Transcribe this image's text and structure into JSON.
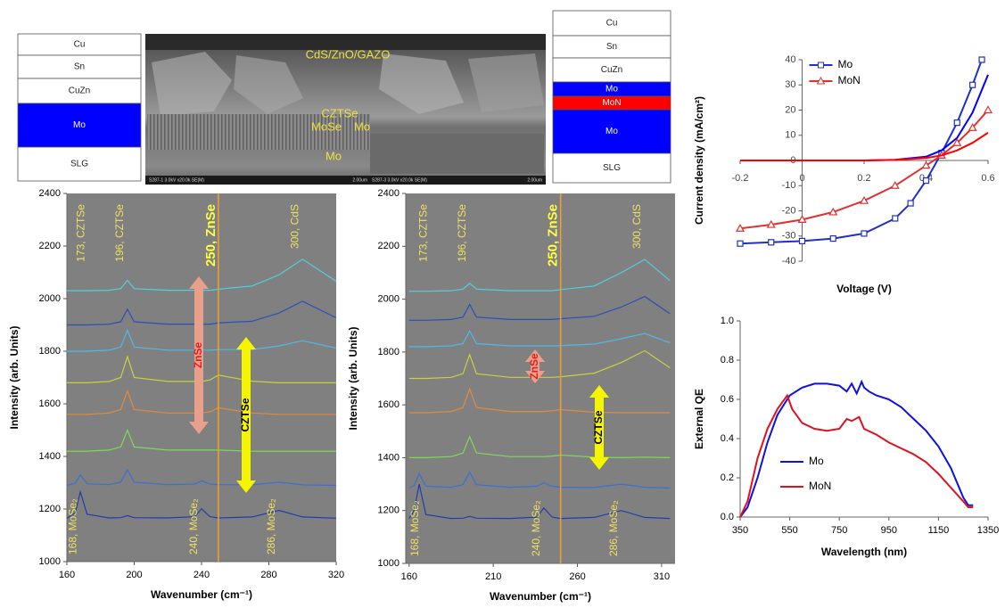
{
  "layer_stacks": [
    {
      "layers": [
        {
          "label": "Cu",
          "color": "#ffffff"
        },
        {
          "label": "Sn",
          "color": "#ffffff"
        },
        {
          "label": "CuZn",
          "color": "#ffffff"
        },
        {
          "label": "Mo",
          "color": "#0000ff"
        },
        {
          "label": "SLG",
          "color": "#ffffff"
        }
      ]
    },
    {
      "layers": [
        {
          "label": "Cu",
          "color": "#ffffff"
        },
        {
          "label": "Sn",
          "color": "#ffffff"
        },
        {
          "label": "CuZn",
          "color": "#ffffff"
        },
        {
          "label": "Mo",
          "color": "#0000ff"
        },
        {
          "label": "MoN",
          "color": "#ff0000"
        },
        {
          "label": "Mo",
          "color": "#0000ff"
        },
        {
          "label": "SLG",
          "color": "#ffffff"
        }
      ]
    }
  ],
  "sem_image": {
    "labels": [
      "CdS/ZnO/GAZO",
      "CZTSe",
      "MoSe",
      "Mo",
      "Mo"
    ],
    "footer": [
      "S287-1 3.0kV x20.0k SE(M)",
      "2.00um",
      "S287-3 3.0kV x20.0k SE(M)",
      "2.00um"
    ]
  },
  "chart_data": [
    {
      "type": "line",
      "background": "#808080",
      "xlabel": "Wavenumber (cm⁻¹)",
      "ylabel": "Intensity (arb. Units)",
      "xlim": [
        160,
        320
      ],
      "xticks": [
        160,
        200,
        240,
        280,
        320
      ],
      "ylim": [
        1000,
        2400
      ],
      "yticks": [
        1000,
        1200,
        1400,
        1600,
        1800,
        2000,
        2200,
        2400
      ],
      "vline": 250,
      "annotations_top": [
        {
          "text": "173, CZTSe",
          "x": 173
        },
        {
          "text": "196, CZTSe",
          "x": 196
        },
        {
          "text": "250, ZnSe",
          "x": 250
        },
        {
          "text": "300, CdS",
          "x": 300
        }
      ],
      "annotations_bottom": [
        {
          "text": "168, MoSe₂",
          "x": 168
        },
        {
          "text": "240, MoSe₂",
          "x": 240
        },
        {
          "text": "286, MoSe₂",
          "x": 286
        }
      ],
      "arrows": [
        {
          "text": "ZnSe",
          "color": "#e8a08c",
          "text_color": "#e02020"
        },
        {
          "text": "CZTSe",
          "color": "#f5f500",
          "text_color": "#000000"
        }
      ],
      "x": [
        160,
        165,
        168,
        172,
        185,
        192,
        196,
        200,
        220,
        236,
        240,
        245,
        250,
        270,
        286,
        300,
        320
      ],
      "series": [
        {
          "color": "#1f3fa8",
          "values": [
            1165,
            1185,
            1265,
            1180,
            1166,
            1167,
            1175,
            1167,
            1166,
            1171,
            1201,
            1171,
            1166,
            1170,
            1195,
            1170,
            1165
          ]
        },
        {
          "color": "#3a6fd8",
          "values": [
            1290,
            1298,
            1330,
            1296,
            1293,
            1302,
            1350,
            1302,
            1293,
            1295,
            1307,
            1295,
            1293,
            1292,
            1302,
            1292,
            1290
          ]
        },
        {
          "color": "#7ed957",
          "values": [
            1420,
            1420,
            1420,
            1420,
            1424,
            1436,
            1500,
            1436,
            1424,
            1424,
            1424,
            1424,
            1424,
            1420,
            1420,
            1420,
            1420
          ]
        },
        {
          "color": "#e08a3c",
          "values": [
            1560,
            1560,
            1560,
            1560,
            1565,
            1578,
            1650,
            1578,
            1565,
            1565,
            1565,
            1570,
            1585,
            1565,
            1560,
            1560,
            1560
          ]
        },
        {
          "color": "#c8d23c",
          "values": [
            1680,
            1680,
            1680,
            1680,
            1685,
            1700,
            1780,
            1700,
            1685,
            1685,
            1685,
            1691,
            1709,
            1686,
            1680,
            1680,
            1680
          ]
        },
        {
          "color": "#4fb8e8",
          "values": [
            1800,
            1800,
            1800,
            1800,
            1804,
            1816,
            1880,
            1816,
            1804,
            1804,
            1804,
            1804,
            1806,
            1806,
            1820,
            1840,
            1812
          ]
        },
        {
          "color": "#2a4fb8",
          "values": [
            1900,
            1900,
            1900,
            1900,
            1903,
            1912,
            1960,
            1912,
            1903,
            1903,
            1903,
            1903,
            1908,
            1914,
            1945,
            1990,
            1927
          ]
        },
        {
          "color": "#4fd0e0",
          "values": [
            2030,
            2030,
            2030,
            2030,
            2032,
            2038,
            2070,
            2038,
            2032,
            2032,
            2032,
            2032,
            2036,
            2048,
            2090,
            2150,
            2066
          ]
        }
      ]
    },
    {
      "type": "line",
      "background": "#808080",
      "xlabel": "Wavenumber (cm⁻¹)",
      "ylabel": "Intensity (arb. Units)",
      "xlim": [
        158,
        318
      ],
      "xticks": [
        160,
        210,
        260,
        310
      ],
      "ylim": [
        1000,
        2400
      ],
      "yticks": [
        1000,
        1200,
        1400,
        1600,
        1800,
        2000,
        2200,
        2400
      ],
      "vline": 250,
      "annotations_top": [
        {
          "text": "173, CZTSe",
          "x": 173
        },
        {
          "text": "196, CZTSe",
          "x": 196
        },
        {
          "text": "250, ZnSe",
          "x": 250
        },
        {
          "text": "300, CdS",
          "x": 300
        }
      ],
      "annotations_bottom": [
        {
          "text": "168, MoSe₂",
          "x": 168
        },
        {
          "text": "240, MoSe₂",
          "x": 240
        },
        {
          "text": "286, MoSe₂",
          "x": 286
        }
      ],
      "arrows": [
        {
          "text": "ZnSe",
          "color": "#e8a08c",
          "text_color": "#e02020"
        },
        {
          "text": "CZTSe",
          "color": "#f5f500",
          "text_color": "#000000"
        }
      ],
      "x": [
        160,
        163,
        166,
        170,
        185,
        192,
        196,
        200,
        220,
        236,
        240,
        245,
        250,
        270,
        286,
        300,
        315
      ],
      "series": [
        {
          "color": "#1f3fa8",
          "values": [
            1170,
            1200,
            1300,
            1185,
            1170,
            1171,
            1178,
            1171,
            1170,
            1175,
            1210,
            1175,
            1170,
            1174,
            1200,
            1174,
            1170
          ]
        },
        {
          "color": "#3a6fd8",
          "values": [
            1285,
            1295,
            1340,
            1292,
            1288,
            1298,
            1345,
            1298,
            1288,
            1292,
            1305,
            1292,
            1288,
            1287,
            1300,
            1288,
            1285
          ]
        },
        {
          "color": "#7ed957",
          "values": [
            1400,
            1400,
            1400,
            1400,
            1404,
            1418,
            1480,
            1418,
            1404,
            1404,
            1404,
            1406,
            1410,
            1402,
            1400,
            1402,
            1400
          ]
        },
        {
          "color": "#e08a3c",
          "values": [
            1570,
            1570,
            1570,
            1570,
            1575,
            1590,
            1660,
            1590,
            1575,
            1575,
            1575,
            1578,
            1582,
            1572,
            1570,
            1570,
            1570
          ]
        },
        {
          "color": "#c8d23c",
          "values": [
            1700,
            1700,
            1700,
            1700,
            1704,
            1718,
            1790,
            1718,
            1704,
            1704,
            1704,
            1704,
            1706,
            1720,
            1760,
            1805,
            1740
          ]
        },
        {
          "color": "#4fb8e8",
          "values": [
            1820,
            1820,
            1820,
            1820,
            1823,
            1832,
            1880,
            1832,
            1823,
            1823,
            1823,
            1823,
            1824,
            1830,
            1850,
            1870,
            1835
          ]
        },
        {
          "color": "#2a4fb8",
          "values": [
            1920,
            1920,
            1920,
            1920,
            1923,
            1932,
            1980,
            1932,
            1923,
            1923,
            1923,
            1923,
            1926,
            1935,
            1970,
            2010,
            1945
          ]
        },
        {
          "color": "#4fd0e0",
          "values": [
            2030,
            2030,
            2030,
            2030,
            2032,
            2038,
            2060,
            2038,
            2032,
            2032,
            2032,
            2032,
            2036,
            2050,
            2100,
            2150,
            2070
          ]
        }
      ]
    },
    {
      "type": "line",
      "spine_at_zero": true,
      "xlabel": "Voltage (V)",
      "ylabel": "Current density  (mA/cm²)",
      "legend": "upper-left",
      "xlim": [
        -0.2,
        0.6
      ],
      "xticks": [
        -0.2,
        0,
        0.2,
        0.4,
        0.6
      ],
      "ylim": [
        -40,
        40
      ],
      "yticks": [
        -40,
        -30,
        -20,
        -10,
        0,
        10,
        20,
        30,
        40
      ],
      "series": [
        {
          "name": "Mo",
          "color": "#2030c8",
          "marker": "square",
          "x": [
            -0.2,
            -0.1,
            0,
            0.1,
            0.2,
            0.3,
            0.35,
            0.4,
            0.45,
            0.5,
            0.55,
            0.58
          ],
          "values": [
            -33,
            -32.5,
            -32,
            -31,
            -29,
            -23,
            -17,
            -8,
            3,
            15,
            30,
            40
          ]
        },
        {
          "name": "MoN",
          "color": "#e03030",
          "marker": "triangle",
          "x": [
            -0.2,
            -0.1,
            0,
            0.1,
            0.2,
            0.3,
            0.4,
            0.45,
            0.5,
            0.55,
            0.6
          ],
          "values": [
            -27,
            -25.5,
            -23.5,
            -20.5,
            -16,
            -10,
            -2,
            2,
            7,
            13,
            20
          ]
        },
        {
          "color": "#0000ff",
          "x": [
            -0.2,
            0,
            0.2,
            0.3,
            0.4,
            0.45,
            0.5,
            0.55,
            0.6
          ],
          "values": [
            0,
            0,
            0,
            0.3,
            1.5,
            4,
            9,
            19,
            34
          ]
        },
        {
          "color": "#ff0000",
          "x": [
            -0.2,
            0,
            0.2,
            0.3,
            0.4,
            0.45,
            0.5,
            0.55,
            0.6
          ],
          "values": [
            0,
            0,
            0,
            0.2,
            1,
            2,
            4,
            7,
            11
          ]
        }
      ]
    },
    {
      "type": "line",
      "xlabel": "Wavelength (nm)",
      "ylabel": "External QE",
      "legend": "lower-left",
      "xlim": [
        350,
        1350
      ],
      "xticks": [
        350,
        550,
        750,
        950,
        1150,
        1350
      ],
      "ylim": [
        0,
        1
      ],
      "yticks": [
        {
          "value": 0,
          "label": "0.0"
        },
        0.2,
        0.4,
        0.6,
        0.8,
        {
          "value": 1,
          "label": "1.0"
        }
      ],
      "series": [
        {
          "name": "Mo",
          "color": "#1010e0",
          "x": [
            350,
            380,
            420,
            460,
            500,
            550,
            600,
            650,
            700,
            750,
            780,
            800,
            820,
            840,
            850,
            870,
            900,
            950,
            1000,
            1050,
            1100,
            1150,
            1200,
            1250,
            1270,
            1290
          ],
          "values": [
            0,
            0.05,
            0.2,
            0.38,
            0.52,
            0.62,
            0.66,
            0.68,
            0.68,
            0.67,
            0.64,
            0.68,
            0.63,
            0.69,
            0.66,
            0.64,
            0.62,
            0.6,
            0.56,
            0.5,
            0.44,
            0.36,
            0.25,
            0.1,
            0.06,
            0.06
          ]
        },
        {
          "name": "MoN",
          "color": "#e01020",
          "x": [
            350,
            380,
            420,
            460,
            500,
            540,
            560,
            600,
            650,
            700,
            750,
            780,
            800,
            830,
            850,
            900,
            950,
            1000,
            1050,
            1100,
            1150,
            1200,
            1250,
            1270,
            1290
          ],
          "values": [
            0,
            0.08,
            0.3,
            0.45,
            0.55,
            0.62,
            0.55,
            0.48,
            0.45,
            0.44,
            0.45,
            0.5,
            0.49,
            0.51,
            0.45,
            0.42,
            0.38,
            0.35,
            0.32,
            0.28,
            0.22,
            0.15,
            0.08,
            0.05,
            0.05
          ]
        }
      ]
    }
  ]
}
